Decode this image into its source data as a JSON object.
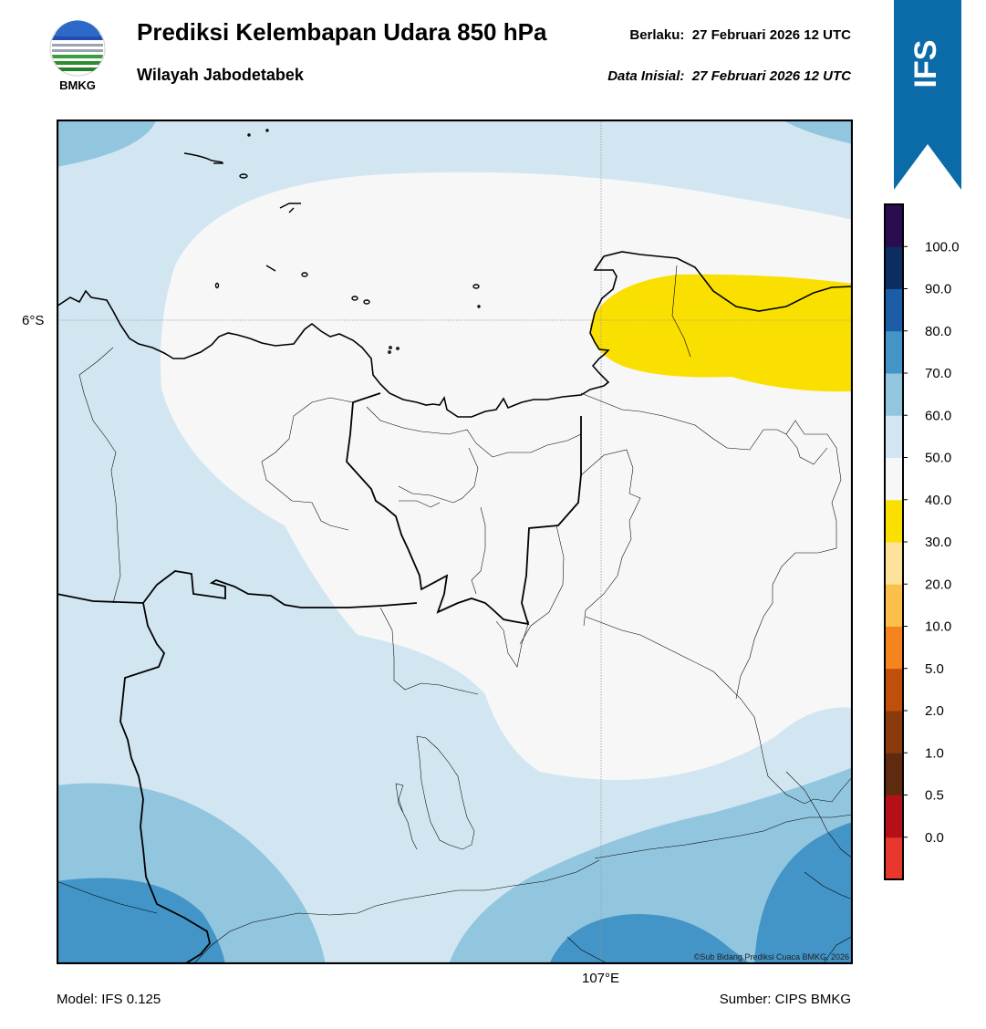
{
  "header": {
    "title": "Prediksi Kelembapan Udara 850 hPa",
    "subtitle": "Wilayah Jabodetabek",
    "valid_label": "Berlaku:",
    "valid_time": "27 Februari 2026 12 UTC",
    "init_label": "Data Inisial:",
    "init_time": "27 Februari 2026 12 UTC"
  },
  "logo": {
    "text": "BMKG",
    "icon": "bmkg-logo"
  },
  "banner": {
    "text": "IFS",
    "color": "#0b6aa8"
  },
  "map": {
    "lat_label": "6°S",
    "lon_label": "107°E",
    "credit": "©Sub Bidang Prediksi Cuaca BMKG, 2026"
  },
  "footer": {
    "model": "Model: IFS 0.125",
    "source": "Sumber: CIPS BMKG"
  },
  "legend": {
    "ticks": [
      "0.0",
      "0.5",
      "1.0",
      "2.0",
      "5.0",
      "10.0",
      "20.0",
      "30.0",
      "40.0",
      "50.0",
      "60.0",
      "70.0",
      "80.0",
      "90.0",
      "100.0"
    ],
    "colors": [
      "#e8372d",
      "#b50f18",
      "#5e2b10",
      "#8b3a0c",
      "#c04f0b",
      "#f5841f",
      "#fbbf4a",
      "#fde39a",
      "#fae000",
      "#f7f7f7",
      "#d2e6f2",
      "#92c6df",
      "#4394c7",
      "#1c5da8",
      "#0c2d5f",
      "#2a0d4e"
    ]
  }
}
